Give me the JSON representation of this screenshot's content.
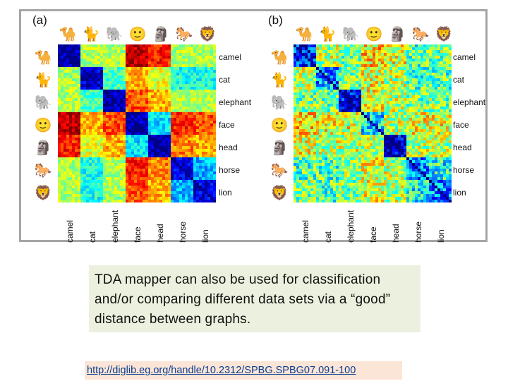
{
  "panels": [
    {
      "label": "(a)"
    },
    {
      "label": "(b)"
    }
  ],
  "classes": [
    "camel",
    "cat",
    "elephant",
    "face",
    "head",
    "horse",
    "lion"
  ],
  "animal_icons": [
    {
      "name": "camel-icon",
      "glyph": "🐪",
      "color": "#1f5fbf"
    },
    {
      "name": "cat-icon",
      "glyph": "🐈",
      "color": "#1f5fbf"
    },
    {
      "name": "elephant-icon",
      "glyph": "🐘",
      "color": "#27b6d9"
    },
    {
      "name": "face-icon",
      "glyph": "🙂",
      "color": "#3fae49"
    },
    {
      "name": "head-icon",
      "glyph": "🗿",
      "color": "#d9b325"
    },
    {
      "name": "horse-icon",
      "glyph": "🐎",
      "color": "#d9401f"
    },
    {
      "name": "lion-icon",
      "glyph": "🦁",
      "color": "#9c1c1c"
    }
  ],
  "matrix_a_levels": [
    [
      0.05,
      0.55,
      0.55,
      0.95,
      0.85,
      0.55,
      0.55
    ],
    [
      0.55,
      0.08,
      0.45,
      0.7,
      0.6,
      0.4,
      0.4
    ],
    [
      0.55,
      0.45,
      0.05,
      0.8,
      0.7,
      0.55,
      0.55
    ],
    [
      0.95,
      0.7,
      0.8,
      0.05,
      0.35,
      0.85,
      0.8
    ],
    [
      0.85,
      0.6,
      0.7,
      0.35,
      0.05,
      0.75,
      0.7
    ],
    [
      0.55,
      0.4,
      0.55,
      0.85,
      0.75,
      0.1,
      0.3
    ],
    [
      0.55,
      0.4,
      0.55,
      0.8,
      0.7,
      0.3,
      0.1
    ]
  ],
  "matrix_b_levels": [
    [
      0.15,
      0.55,
      0.5,
      0.65,
      0.6,
      0.45,
      0.5
    ],
    [
      0.55,
      0.3,
      0.5,
      0.6,
      0.55,
      0.45,
      0.45
    ],
    [
      0.5,
      0.5,
      0.1,
      0.6,
      0.55,
      0.5,
      0.5
    ],
    [
      0.65,
      0.6,
      0.6,
      0.35,
      0.55,
      0.6,
      0.6
    ],
    [
      0.6,
      0.55,
      0.55,
      0.55,
      0.05,
      0.55,
      0.55
    ],
    [
      0.45,
      0.45,
      0.5,
      0.6,
      0.55,
      0.25,
      0.4
    ],
    [
      0.5,
      0.45,
      0.5,
      0.6,
      0.55,
      0.4,
      0.25
    ]
  ],
  "caption": {
    "text": "TDA mapper can also be used for classification and/or comparing different data sets via a “good” distance between graphs."
  },
  "link": {
    "text": "http://diglib.eg.org/handle/10.2312/SPBG.SPBG07.091-100"
  }
}
